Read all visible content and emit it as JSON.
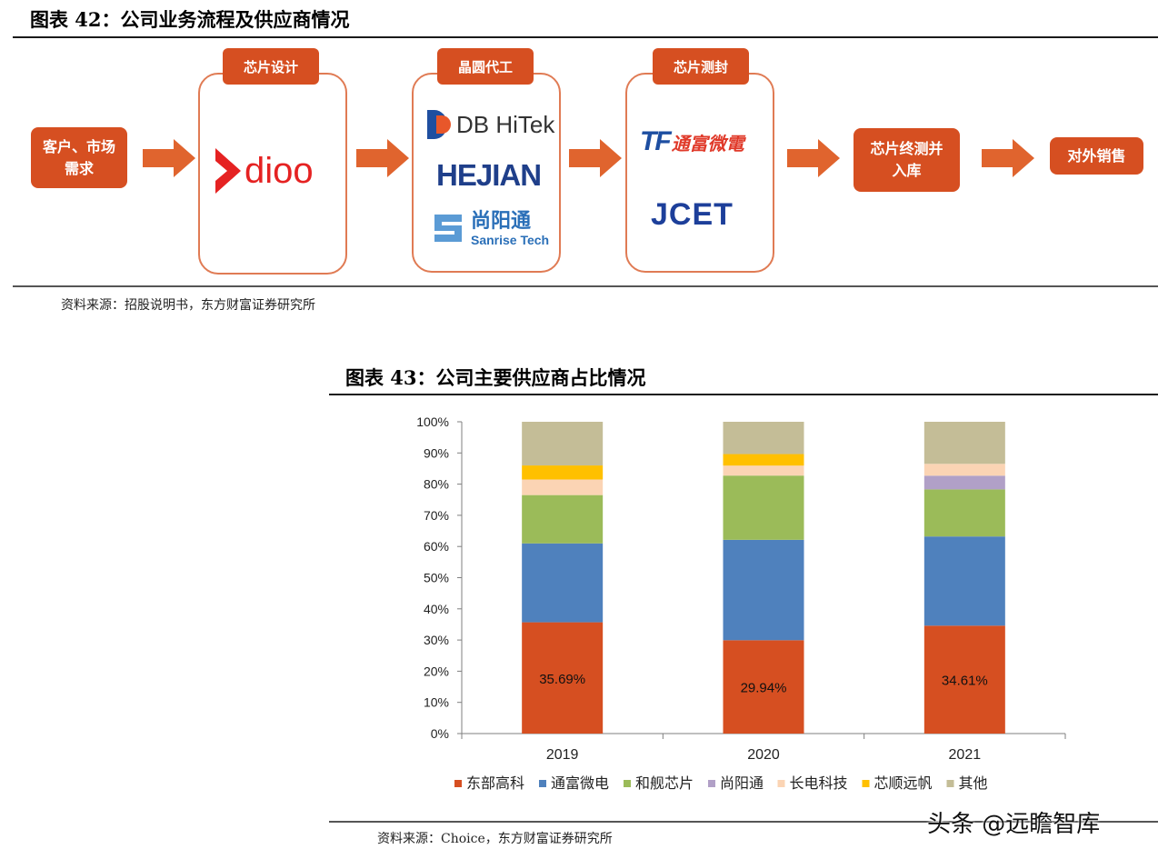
{
  "fig42": {
    "title": "图表 42：公司业务流程及供应商情况",
    "source": "资料来源：招股说明书，东方财富证券研究所",
    "customer_box": "客户、市场需求",
    "stages": [
      {
        "tag": "芯片设计",
        "logos": [
          "dioo"
        ]
      },
      {
        "tag": "晶圆代工",
        "logos": [
          "DB HiTek",
          "HEJIAN",
          "尚阳通",
          "Sanrise Tech"
        ]
      },
      {
        "tag": "芯片测封",
        "logos": [
          "TF",
          "通富微電",
          "JCET"
        ]
      }
    ],
    "final_test_box": "芯片终测并入库",
    "sales_box": "对外销售"
  },
  "fig43": {
    "title": "图表 43：公司主要供应商占比情况",
    "source": "资料来源：Choice，东方财富证券研究所"
  },
  "watermark": "头条 @远瞻智库",
  "chart_data": {
    "type": "bar",
    "stacked": true,
    "categories": [
      "2019",
      "2020",
      "2021"
    ],
    "ylim": [
      0,
      100
    ],
    "yticks": [
      "0%",
      "10%",
      "20%",
      "30%",
      "40%",
      "50%",
      "60%",
      "70%",
      "80%",
      "90%",
      "100%"
    ],
    "legend_position": "bottom",
    "series": [
      {
        "name": "东部高科",
        "color": "#d64f21",
        "values": [
          35.69,
          29.94,
          34.61
        ],
        "labels": [
          "35.69%",
          "29.94%",
          "34.61%"
        ]
      },
      {
        "name": "通富微电",
        "color": "#4f81bd",
        "values": [
          25.3,
          32.2,
          28.6
        ]
      },
      {
        "name": "和舰芯片",
        "color": "#9bbb59",
        "values": [
          15.5,
          20.6,
          15.1
        ]
      },
      {
        "name": "尚阳通",
        "color": "#b1a0c7",
        "values": [
          0,
          0,
          4.4
        ]
      },
      {
        "name": "长电科技",
        "color": "#fbd4b4",
        "values": [
          5.0,
          3.2,
          3.8
        ]
      },
      {
        "name": "芯顺远帆",
        "color": "#ffc000",
        "values": [
          4.5,
          3.7,
          0
        ]
      },
      {
        "name": "其他",
        "color": "#c4bd97",
        "values": [
          14.01,
          10.36,
          13.49
        ]
      }
    ]
  }
}
